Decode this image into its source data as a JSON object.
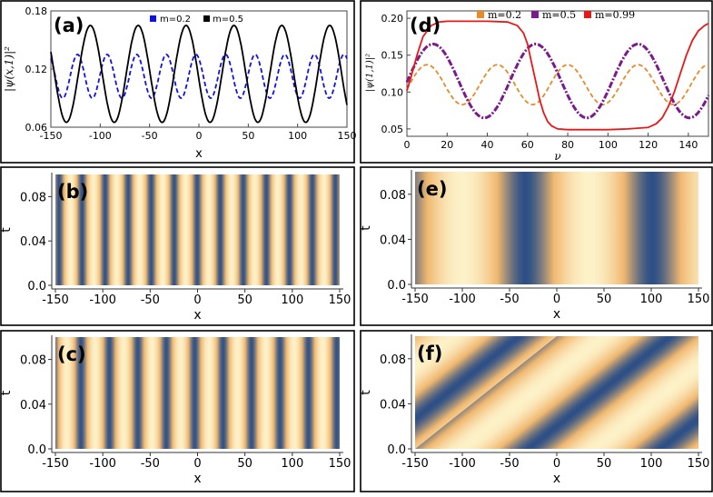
{
  "colors": {
    "blue_series": "#1010e8",
    "black_series": "#000000",
    "orange_series": "#e8892a",
    "purple_series": "#7a1a8c",
    "red_series": "#e81818",
    "density_dark": "#2c4f86",
    "density_light": "#fdf1c8",
    "density_mid": "#f0b870"
  },
  "chart_data": [
    {
      "panel": "(a)",
      "type": "line",
      "xlabel": "x",
      "ylabel": "|ψ(x,1)|²",
      "xlim": [
        -150,
        150
      ],
      "ylim": [
        0.06,
        0.18
      ],
      "xticks": [
        "-150",
        "-100",
        "-50",
        "0",
        "50",
        "100",
        "150"
      ],
      "yticks": [
        "0.06",
        "0.12",
        "0.18"
      ],
      "legend_position": "top-center",
      "series": [
        {
          "name": "m=0.2",
          "style": "dashed",
          "color": "blue",
          "min": 0.09,
          "max": 0.135,
          "period": 30,
          "phase": -153
        },
        {
          "name": "m=0.5",
          "style": "solid",
          "color": "black",
          "min": 0.065,
          "max": 0.165,
          "period": 48.5,
          "phase": -110
        }
      ]
    },
    {
      "panel": "(d)",
      "type": "line",
      "xlabel": "ν",
      "ylabel": "|ψ(1,1)|²",
      "xlim": [
        0,
        150
      ],
      "ylim": [
        0.04,
        0.21
      ],
      "xticks": [
        "0",
        "20",
        "40",
        "60",
        "80",
        "100",
        "120",
        "140"
      ],
      "yticks": [
        "0.05",
        "0.10",
        "0.15",
        "0.20"
      ],
      "legend_position": "top-center",
      "series": [
        {
          "name": "m=0.2",
          "style": "dashed",
          "color": "orange",
          "min": 0.083,
          "max": 0.137,
          "period": 35,
          "phase": 10
        },
        {
          "name": "m=0.5",
          "style": "dash-dot",
          "color": "purple",
          "min": 0.065,
          "max": 0.165,
          "period": 51,
          "phase": 13
        },
        {
          "name": "m=0.99",
          "style": "solid",
          "color": "red",
          "x": [
            0,
            2,
            5,
            8,
            12,
            16,
            20,
            30,
            40,
            50,
            55,
            58,
            60,
            62,
            64,
            66,
            68,
            70,
            72,
            75,
            80,
            90,
            100,
            110,
            120,
            124,
            127,
            130,
            133,
            136,
            139,
            142,
            145,
            148,
            150
          ],
          "y": [
            0.102,
            0.12,
            0.15,
            0.175,
            0.19,
            0.195,
            0.196,
            0.196,
            0.196,
            0.195,
            0.19,
            0.18,
            0.165,
            0.14,
            0.115,
            0.09,
            0.072,
            0.06,
            0.054,
            0.05,
            0.049,
            0.049,
            0.049,
            0.05,
            0.052,
            0.057,
            0.065,
            0.08,
            0.1,
            0.125,
            0.15,
            0.17,
            0.183,
            0.19,
            0.193
          ]
        }
      ]
    },
    {
      "panel": "(b)",
      "type": "heatmap",
      "xlabel": "x",
      "ylabel": "t",
      "xlim": [
        -150,
        150
      ],
      "ylim": [
        0,
        0.1
      ],
      "xticks": [
        "-150",
        "-100",
        "-50",
        "0",
        "50",
        "100",
        "150"
      ],
      "yticks": [
        "0.0",
        "0.04",
        "0.08"
      ],
      "period": 24.3,
      "phase": -134,
      "drift": 0
    },
    {
      "panel": "(e)",
      "type": "heatmap",
      "xlabel": "x",
      "ylabel": "t",
      "xlim": [
        -150,
        150
      ],
      "ylim": [
        0,
        0.1
      ],
      "xticks": [
        "-150",
        "-100",
        "-50",
        "0",
        "50",
        "100",
        "150"
      ],
      "yticks": [
        "0.0",
        "0.04",
        "0.08"
      ],
      "period": 134,
      "phase": -100,
      "drift": 0
    },
    {
      "panel": "(c)",
      "type": "heatmap",
      "xlabel": "x",
      "ylabel": "t",
      "xlim": [
        -150,
        150
      ],
      "ylim": [
        0,
        0.1
      ],
      "xticks": [
        "-150",
        "-100",
        "-50",
        "0",
        "50",
        "100",
        "150"
      ],
      "yticks": [
        "0.0",
        "0.04",
        "0.08"
      ],
      "period": 30,
      "phase": -138,
      "drift": 0
    },
    {
      "panel": "(f)",
      "type": "heatmap",
      "xlabel": "x",
      "ylabel": "t",
      "xlim": [
        -150,
        150
      ],
      "ylim": [
        0,
        0.1
      ],
      "xticks": [
        "-150",
        "-100",
        "-50",
        "0",
        "50",
        "100",
        "150"
      ],
      "yticks": [
        "0.0",
        "0.04",
        "0.08"
      ],
      "period": 140,
      "phase": -100,
      "drift": 150
    }
  ]
}
